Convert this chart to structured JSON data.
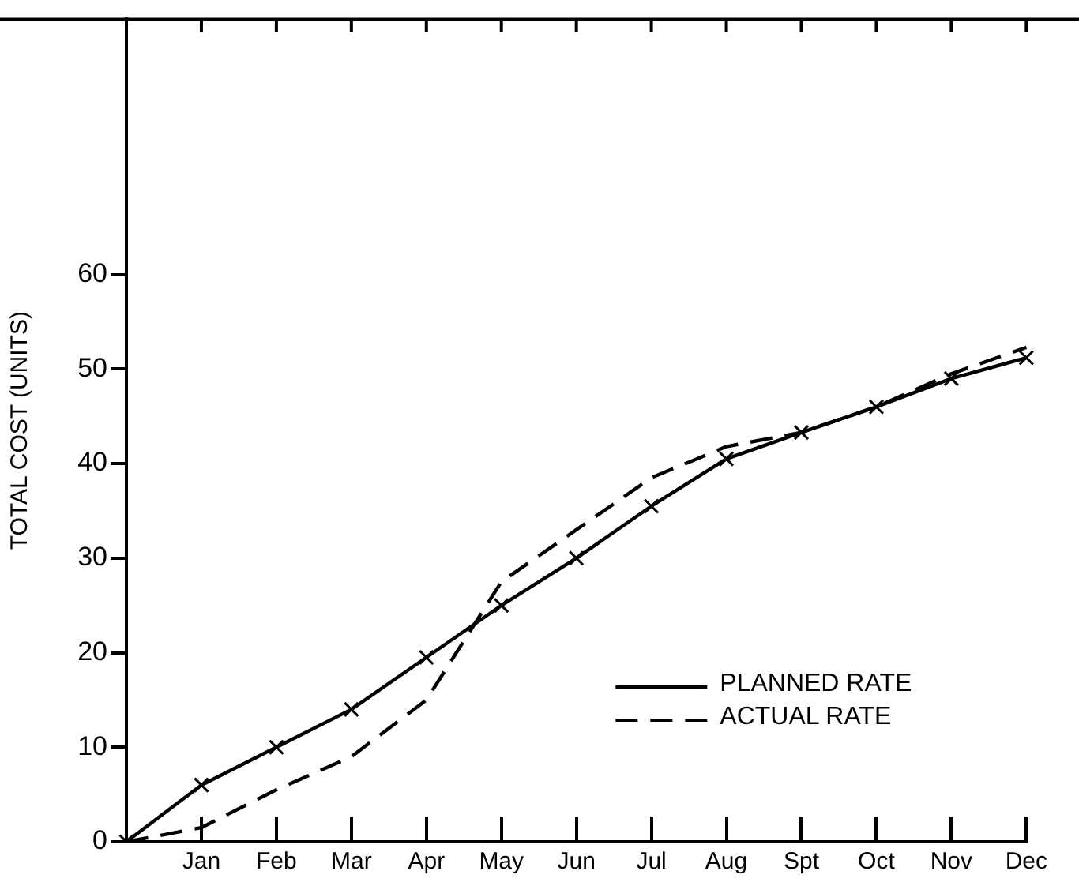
{
  "chart_data": {
    "type": "line",
    "ylabel": "TOTAL COST (UNITS)",
    "categories": [
      null,
      "Jan",
      "Feb",
      "Mar",
      "Apr",
      "May",
      "Jun",
      "Jul",
      "Aug",
      "Spt",
      "Oct",
      "Nov",
      "Dec"
    ],
    "ylim": [
      0,
      87
    ],
    "yticks": [
      0,
      10,
      20,
      30,
      40,
      50,
      60
    ],
    "grid": false,
    "legend": "bottom right",
    "series": [
      {
        "name": "PLANNED RATE",
        "color": "#000000",
        "line_style": "solid",
        "marker": "cross",
        "values": [
          0,
          6,
          10,
          14,
          19.5,
          25,
          30,
          35.5,
          40.5,
          43.3,
          46,
          49,
          51.2
        ]
      },
      {
        "name": "ACTUAL RATE",
        "color": "#000000",
        "line_style": "dashed",
        "marker": "none",
        "values": [
          0,
          1.5,
          5.5,
          9,
          15,
          27.5,
          33,
          38.5,
          41.8,
          43.3,
          46,
          49.5,
          52.3
        ]
      }
    ]
  }
}
